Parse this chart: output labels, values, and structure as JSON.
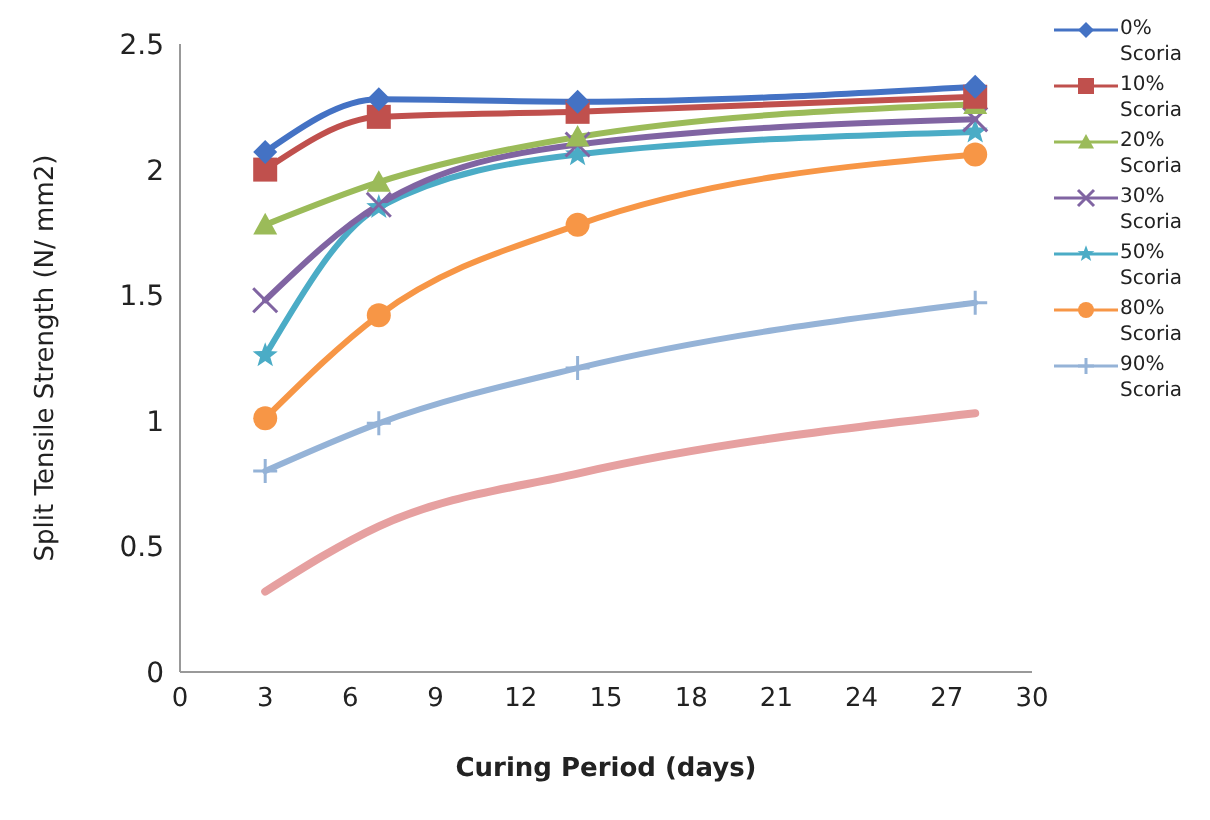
{
  "chart_data": {
    "type": "line",
    "xlabel": "Curing Period (days)",
    "ylabel": "Split Tensile Strength (N/ mm2)",
    "x": [
      3,
      7,
      14,
      28
    ],
    "xlim": [
      0,
      30
    ],
    "xticks": [
      0,
      3,
      6,
      9,
      12,
      15,
      18,
      21,
      24,
      27,
      30
    ],
    "ylim": [
      0,
      2.5
    ],
    "yticks": [
      0,
      0.5,
      1,
      1.5,
      2,
      2.5
    ],
    "grid": false,
    "legend": "right",
    "line_style": "solid",
    "series": [
      {
        "name": "0% Scoria",
        "color": "#4472c4",
        "marker": "diamond",
        "values": [
          2.07,
          2.28,
          2.27,
          2.33
        ]
      },
      {
        "name": "10% Scoria",
        "color": "#c0504d",
        "marker": "square",
        "values": [
          2.0,
          2.21,
          2.23,
          2.29
        ]
      },
      {
        "name": "20% Scoria",
        "color": "#9bbb59",
        "marker": "triangle",
        "values": [
          1.78,
          1.95,
          2.13,
          2.26
        ]
      },
      {
        "name": "30% Scoria",
        "color": "#8064a2",
        "marker": "cross",
        "values": [
          1.48,
          1.86,
          2.1,
          2.2
        ]
      },
      {
        "name": "50% Scoria",
        "color": "#4bacc6",
        "marker": "star",
        "values": [
          1.26,
          1.85,
          2.06,
          2.15
        ]
      },
      {
        "name": "80% Scoria",
        "color": "#f79646",
        "marker": "circle",
        "values": [
          1.01,
          1.42,
          1.78,
          2.06
        ]
      },
      {
        "name": "90% Scoria",
        "color": "#95b3d7",
        "marker": "plus",
        "values": [
          0.8,
          0.99,
          1.21,
          1.47
        ]
      },
      {
        "color": "#e6a0a0",
        "marker": "none",
        "values": [
          0.32,
          0.58,
          0.79,
          1.03
        ]
      }
    ]
  }
}
